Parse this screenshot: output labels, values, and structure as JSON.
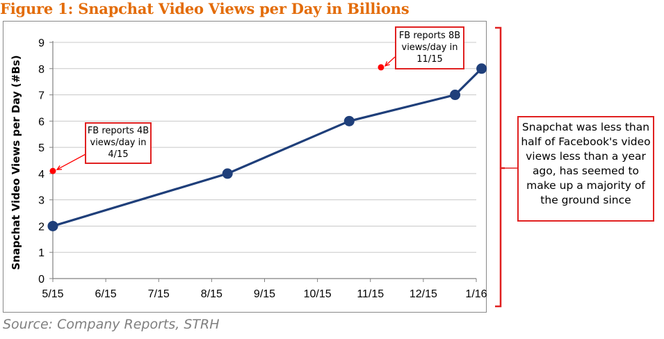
{
  "title": "Figure 1: Snapchat Video Views per Day in Billions",
  "source": "Source: Company Reports, STRH",
  "callouts": {
    "fb4": [
      "FB reports 4B",
      "views/day in",
      "4/15"
    ],
    "fb8": [
      "FB reports 8B",
      "views/day in",
      "11/15"
    ],
    "summary": [
      "Snapchat was less than",
      "half of Facebook's video",
      "views less than a year",
      "ago, has seemed to",
      "make up a majority of",
      "the ground since"
    ]
  },
  "colors": {
    "title": "#e36c09",
    "series": "#1f3f7a",
    "facebook_marker": "#ff0000",
    "callout_border": "#e02020",
    "source_text": "#7f7f7f"
  },
  "chart_data": {
    "type": "line",
    "ylabel": "Snapchat Video Views per Day (#Bs)",
    "xlabel": "",
    "categories": [
      "5/15",
      "6/15",
      "7/15",
      "8/15",
      "9/15",
      "10/15",
      "11/15",
      "12/15",
      "1/16"
    ],
    "ylim": [
      0,
      9
    ],
    "yticks": [
      0,
      1,
      2,
      3,
      4,
      5,
      6,
      7,
      8,
      9
    ],
    "grid": true,
    "series": [
      {
        "values": [
          [
            0,
            2
          ],
          [
            3.3,
            4
          ],
          [
            5.6,
            6
          ],
          [
            7.6,
            7
          ],
          [
            8.1,
            8
          ]
        ]
      }
    ],
    "facebook_points": [
      [
        0,
        4.1
      ],
      [
        6.2,
        8.05
      ]
    ]
  }
}
